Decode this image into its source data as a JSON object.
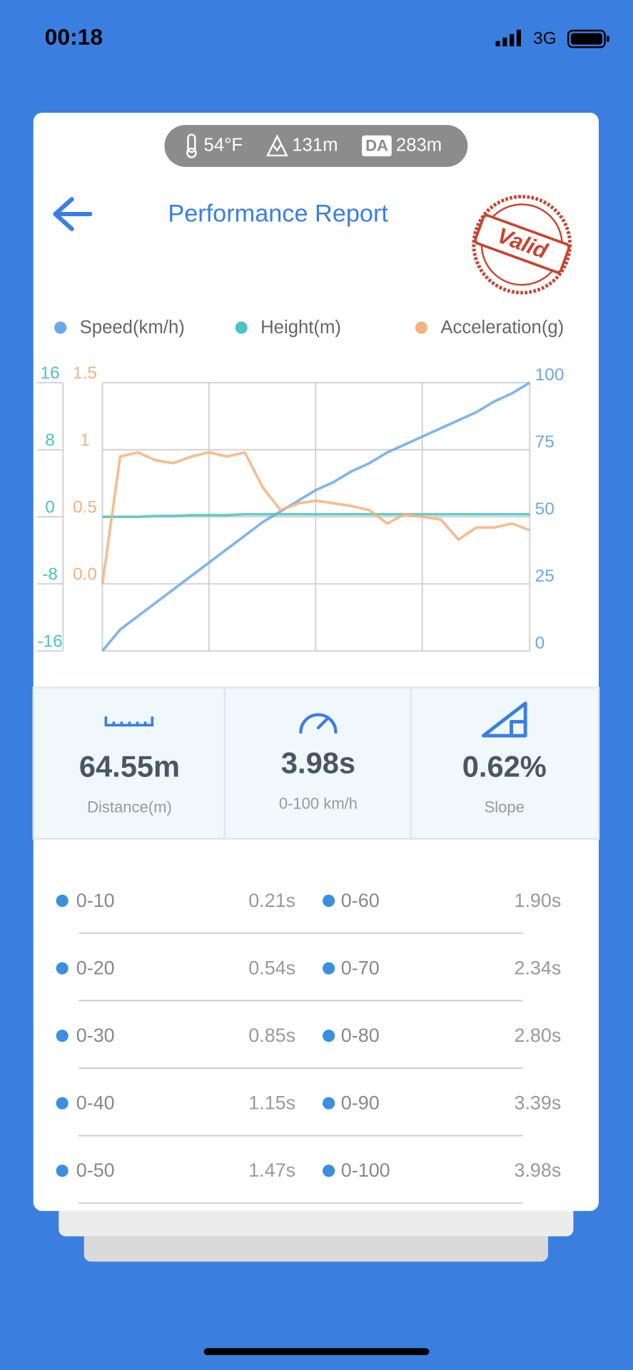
{
  "status": {
    "time": "00:18",
    "network": "3G"
  },
  "conditions": {
    "temperature": "54°F",
    "altitude": "131m",
    "da_label": "DA",
    "density_altitude": "283m"
  },
  "header": {
    "title": "Performance Report",
    "stamp": "Valid"
  },
  "chart_data": {
    "type": "line",
    "series": [
      {
        "name": "Speed(km/h)",
        "color": "#6aa8ea",
        "axis": "y",
        "values": [
          0,
          8,
          13,
          18,
          23,
          28,
          33,
          38,
          43,
          48,
          52,
          56,
          60,
          63,
          67,
          70,
          74,
          77,
          80,
          83,
          86,
          89,
          93,
          96,
          100
        ]
      },
      {
        "name": "Height(m)",
        "color": "#4cc3c3",
        "axis": "y3",
        "values": [
          0,
          0,
          0,
          0.1,
          0.1,
          0.2,
          0.2,
          0.2,
          0.3,
          0.3,
          0.3,
          0.3,
          0.3,
          0.3,
          0.3,
          0.3,
          0.3,
          0.3,
          0.3,
          0.3,
          0.3,
          0.3,
          0.3,
          0.3,
          0.3
        ]
      },
      {
        "name": "Acceleration(g)",
        "color": "#f4b27d",
        "axis": "y2",
        "values": [
          0,
          0.95,
          0.98,
          0.92,
          0.9,
          0.95,
          0.98,
          0.95,
          0.98,
          0.72,
          0.55,
          0.6,
          0.62,
          0.6,
          0.58,
          0.55,
          0.45,
          0.52,
          0.5,
          0.48,
          0.33,
          0.42,
          0.42,
          0.45,
          0.4
        ]
      }
    ],
    "ylim": [
      0,
      100
    ],
    "yticks": [
      0,
      25,
      50,
      75,
      100
    ],
    "y2lim": [
      -0.5,
      1.5
    ],
    "y2ticks": [
      {
        "value": 0,
        "label": "0.0"
      },
      0.5,
      1,
      1.5
    ],
    "y3lim": [
      -16,
      16
    ],
    "y3ticks": [
      -16,
      -8,
      0,
      8,
      16
    ],
    "grid": true
  },
  "stats": [
    {
      "value": "64.55m",
      "label": "Distance(m)"
    },
    {
      "value": "3.98s",
      "label": "0-100 km/h"
    },
    {
      "value": "0.62%",
      "label": "Slope"
    }
  ],
  "splits": [
    [
      {
        "range": "0-10",
        "time": "0.21s"
      },
      {
        "range": "0-60",
        "time": "1.90s"
      }
    ],
    [
      {
        "range": "0-20",
        "time": "0.54s"
      },
      {
        "range": "0-70",
        "time": "2.34s"
      }
    ],
    [
      {
        "range": "0-30",
        "time": "0.85s"
      },
      {
        "range": "0-80",
        "time": "2.80s"
      }
    ],
    [
      {
        "range": "0-40",
        "time": "1.15s"
      },
      {
        "range": "0-90",
        "time": "3.39s"
      }
    ],
    [
      {
        "range": "0-50",
        "time": "1.47s"
      },
      {
        "range": "0-100",
        "time": "3.98s"
      }
    ]
  ]
}
